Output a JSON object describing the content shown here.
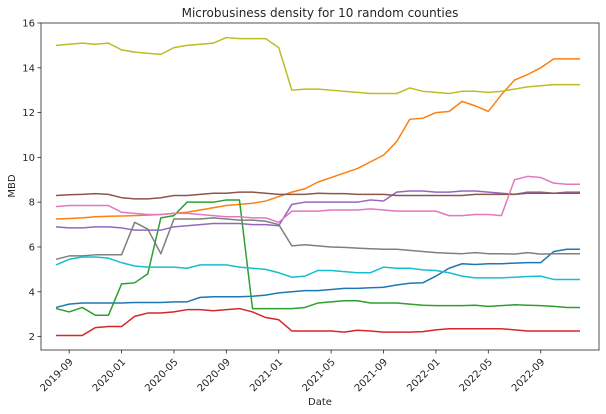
{
  "chart_data": {
    "type": "line",
    "title": "Microbusiness density for 10 random counties",
    "xlabel": "Date",
    "ylabel": "MBD",
    "ylim": [
      1.4,
      16.0
    ],
    "yticks": [
      2,
      4,
      6,
      8,
      10,
      12,
      14,
      16
    ],
    "xticks": [
      "2019-09",
      "2020-01",
      "2020-05",
      "2020-09",
      "2021-01",
      "2021-05",
      "2021-09",
      "2022-01",
      "2022-05",
      "2022-09"
    ],
    "grid": false,
    "legend": "none",
    "x": [
      "2019-08",
      "2019-09",
      "2019-10",
      "2019-11",
      "2019-12",
      "2020-01",
      "2020-02",
      "2020-03",
      "2020-04",
      "2020-05",
      "2020-06",
      "2020-07",
      "2020-08",
      "2020-09",
      "2020-10",
      "2020-11",
      "2020-12",
      "2021-01",
      "2021-02",
      "2021-03",
      "2021-04",
      "2021-05",
      "2021-06",
      "2021-07",
      "2021-08",
      "2021-09",
      "2021-10",
      "2021-11",
      "2021-12",
      "2022-01",
      "2022-02",
      "2022-03",
      "2022-04",
      "2022-05",
      "2022-06",
      "2022-07",
      "2022-08",
      "2022-09",
      "2022-10",
      "2022-11",
      "2022-12"
    ],
    "series": [
      {
        "color": "#1f77b4",
        "values": [
          3.3,
          3.45,
          3.5,
          3.5,
          3.5,
          3.5,
          3.52,
          3.52,
          3.52,
          3.55,
          3.55,
          3.75,
          3.78,
          3.78,
          3.78,
          3.8,
          3.85,
          3.95,
          4.0,
          4.05,
          4.05,
          4.1,
          4.15,
          4.15,
          4.18,
          4.2,
          4.3,
          4.38,
          4.4,
          4.7,
          5.05,
          5.25,
          5.22,
          5.25,
          5.25,
          5.28,
          5.3,
          5.3,
          5.8,
          5.9,
          5.9
        ]
      },
      {
        "color": "#ff7f0e",
        "values": [
          7.25,
          7.27,
          7.3,
          7.35,
          7.37,
          7.38,
          7.4,
          7.42,
          7.45,
          7.5,
          7.55,
          7.65,
          7.75,
          7.85,
          7.9,
          7.95,
          8.05,
          8.25,
          8.45,
          8.6,
          8.9,
          9.1,
          9.3,
          9.5,
          9.8,
          10.1,
          10.7,
          11.7,
          11.75,
          12.0,
          12.05,
          12.5,
          12.3,
          12.05,
          12.8,
          13.45,
          13.7,
          14.0,
          14.4,
          14.4,
          14.4
        ]
      },
      {
        "color": "#2ca02c",
        "values": [
          3.25,
          3.1,
          3.3,
          2.95,
          2.95,
          4.35,
          4.4,
          4.8,
          7.3,
          7.4,
          8.0,
          8.0,
          8.0,
          8.1,
          8.1,
          3.25,
          3.25,
          3.25,
          3.25,
          3.3,
          3.5,
          3.55,
          3.6,
          3.6,
          3.5,
          3.5,
          3.5,
          3.45,
          3.4,
          3.38,
          3.38,
          3.38,
          3.4,
          3.35,
          3.38,
          3.42,
          3.4,
          3.38,
          3.35,
          3.3,
          3.3
        ]
      },
      {
        "color": "#d62728",
        "values": [
          2.05,
          2.05,
          2.05,
          2.4,
          2.45,
          2.45,
          2.9,
          3.05,
          3.05,
          3.1,
          3.2,
          3.2,
          3.15,
          3.2,
          3.25,
          3.1,
          2.85,
          2.75,
          2.25,
          2.25,
          2.25,
          2.25,
          2.2,
          2.28,
          2.25,
          2.2,
          2.2,
          2.2,
          2.22,
          2.3,
          2.35,
          2.35,
          2.35,
          2.35,
          2.35,
          2.3,
          2.25,
          2.25,
          2.25,
          2.25,
          2.25
        ]
      },
      {
        "color": "#9467bd",
        "values": [
          6.9,
          6.85,
          6.85,
          6.9,
          6.9,
          6.85,
          6.75,
          6.75,
          6.75,
          6.9,
          6.95,
          7.0,
          7.05,
          7.05,
          7.05,
          7.0,
          7.0,
          6.95,
          7.9,
          8.0,
          8.0,
          8.0,
          8.0,
          8.0,
          8.1,
          8.05,
          8.45,
          8.5,
          8.5,
          8.45,
          8.45,
          8.5,
          8.5,
          8.45,
          8.4,
          8.35,
          8.45,
          8.45,
          8.4,
          8.45,
          8.45
        ]
      },
      {
        "color": "#8c564b",
        "values": [
          8.3,
          8.33,
          8.35,
          8.38,
          8.35,
          8.2,
          8.15,
          8.15,
          8.2,
          8.3,
          8.3,
          8.35,
          8.4,
          8.4,
          8.45,
          8.45,
          8.4,
          8.35,
          8.35,
          8.35,
          8.4,
          8.38,
          8.38,
          8.35,
          8.35,
          8.35,
          8.3,
          8.3,
          8.3,
          8.3,
          8.3,
          8.3,
          8.35,
          8.35,
          8.35,
          8.35,
          8.4,
          8.4,
          8.4,
          8.4,
          8.4
        ]
      },
      {
        "color": "#e377c2",
        "values": [
          7.8,
          7.85,
          7.85,
          7.85,
          7.85,
          7.55,
          7.5,
          7.45,
          7.45,
          7.5,
          7.5,
          7.45,
          7.4,
          7.35,
          7.35,
          7.3,
          7.3,
          7.1,
          7.6,
          7.6,
          7.6,
          7.65,
          7.65,
          7.65,
          7.7,
          7.65,
          7.6,
          7.6,
          7.6,
          7.6,
          7.4,
          7.4,
          7.45,
          7.45,
          7.4,
          9.0,
          9.15,
          9.1,
          8.85,
          8.8,
          8.8
        ]
      },
      {
        "color": "#7f7f7f",
        "values": [
          5.45,
          5.6,
          5.6,
          5.65,
          5.65,
          5.65,
          7.1,
          6.8,
          5.7,
          7.25,
          7.25,
          7.25,
          7.3,
          7.25,
          7.2,
          7.2,
          7.15,
          7.0,
          6.05,
          6.1,
          6.05,
          6.0,
          5.98,
          5.95,
          5.92,
          5.9,
          5.9,
          5.85,
          5.8,
          5.75,
          5.72,
          5.7,
          5.75,
          5.7,
          5.7,
          5.68,
          5.75,
          5.68,
          5.7,
          5.7,
          5.7
        ]
      },
      {
        "color": "#bcbd22",
        "values": [
          15.0,
          15.05,
          15.1,
          15.05,
          15.1,
          14.8,
          14.7,
          14.65,
          14.6,
          14.9,
          15.0,
          15.05,
          15.1,
          15.35,
          15.3,
          15.3,
          15.3,
          14.9,
          13.0,
          13.05,
          13.05,
          13.0,
          12.95,
          12.9,
          12.85,
          12.85,
          12.85,
          13.1,
          12.95,
          12.9,
          12.85,
          12.95,
          12.95,
          12.9,
          12.95,
          13.05,
          13.15,
          13.2,
          13.25,
          13.25,
          13.25
        ]
      },
      {
        "color": "#17becf",
        "values": [
          5.2,
          5.45,
          5.55,
          5.55,
          5.5,
          5.3,
          5.15,
          5.1,
          5.1,
          5.1,
          5.05,
          5.2,
          5.2,
          5.2,
          5.1,
          5.05,
          5.0,
          4.85,
          4.65,
          4.7,
          4.95,
          4.95,
          4.9,
          4.85,
          4.85,
          5.1,
          5.05,
          5.05,
          4.98,
          4.95,
          4.85,
          4.7,
          4.62,
          4.62,
          4.62,
          4.65,
          4.68,
          4.7,
          4.55,
          4.55,
          4.55
        ]
      }
    ]
  }
}
